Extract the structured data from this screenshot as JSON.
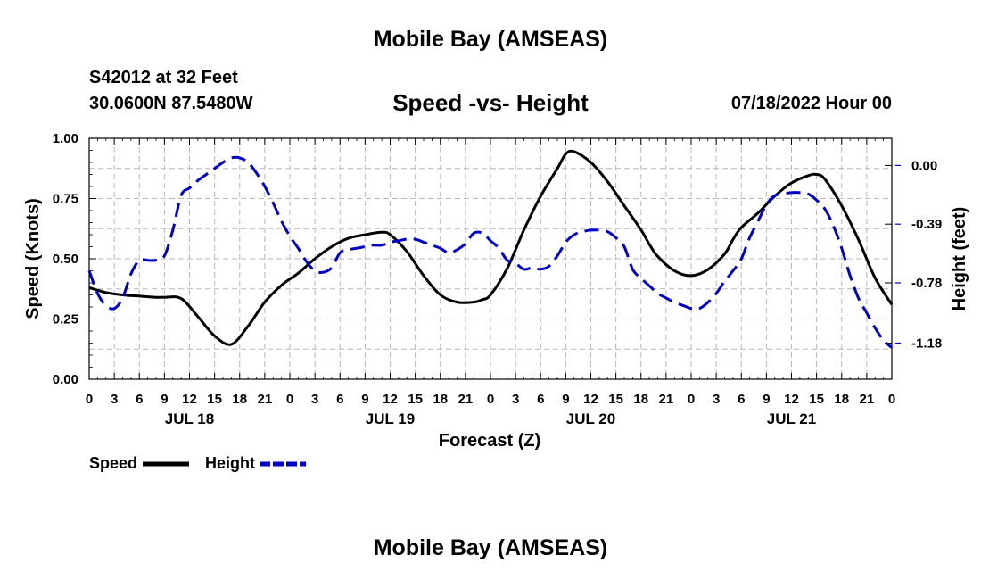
{
  "page": {
    "title_top": "Mobile Bay (AMSEAS)",
    "station": "S42012 at 32 Feet",
    "coords": "30.0600N  87.5480W",
    "subtitle": "Speed -vs- Height",
    "date": "07/18/2022 Hour 00",
    "title_bottom": "Mobile Bay (AMSEAS)"
  },
  "chart_data": {
    "type": "line",
    "title": "Speed -vs- Height",
    "xlabel": "Forecast (Z)",
    "ylabel_left": "Speed (Knots)",
    "ylabel_right": "Height (feet)",
    "x_range_hours": [
      0,
      96
    ],
    "x_tick_labels": [
      "0",
      "3",
      "6",
      "9",
      "12",
      "15",
      "18",
      "21",
      "0",
      "3",
      "6",
      "9",
      "12",
      "15",
      "18",
      "21",
      "0",
      "3",
      "6",
      "9",
      "12",
      "15",
      "18",
      "21",
      "0",
      "3",
      "6",
      "9",
      "12",
      "15",
      "18",
      "21",
      "0"
    ],
    "day_labels": [
      "JUL 18",
      "JUL 19",
      "JUL 20",
      "JUL 21"
    ],
    "y_left": {
      "range": [
        0,
        1
      ],
      "ticks": [
        0,
        0.25,
        0.5,
        0.75,
        1.0
      ],
      "tick_labels": [
        "0.00",
        "0.25",
        "0.50",
        "0.75",
        "1.00"
      ]
    },
    "y_right": {
      "range": [
        -1.42,
        0.18
      ],
      "ticks": [
        0,
        -0.39,
        -0.78,
        -1.18
      ],
      "tick_labels": [
        "0.00",
        "-0.39",
        "-0.78",
        "-1.18"
      ]
    },
    "series": [
      {
        "name": "Speed",
        "axis": "left",
        "color": "#000000",
        "dash": "solid",
        "x": [
          0,
          2,
          4,
          6,
          8,
          9,
          11,
          13,
          15,
          17,
          19,
          21,
          23,
          25,
          27,
          29,
          31,
          33,
          35,
          36,
          38,
          40,
          42,
          44,
          46,
          47,
          48,
          50,
          52,
          54,
          56,
          57,
          58,
          60,
          62,
          64,
          66,
          67,
          68,
          70,
          72,
          74,
          76,
          77,
          78,
          80,
          82,
          84,
          86,
          87,
          88,
          90,
          92,
          94,
          96
        ],
        "values": [
          0.38,
          0.36,
          0.35,
          0.345,
          0.34,
          0.34,
          0.335,
          0.26,
          0.18,
          0.145,
          0.22,
          0.32,
          0.39,
          0.44,
          0.5,
          0.55,
          0.585,
          0.6,
          0.61,
          0.6,
          0.53,
          0.43,
          0.35,
          0.32,
          0.32,
          0.33,
          0.35,
          0.46,
          0.62,
          0.76,
          0.875,
          0.935,
          0.945,
          0.9,
          0.82,
          0.72,
          0.62,
          0.56,
          0.51,
          0.45,
          0.43,
          0.455,
          0.52,
          0.58,
          0.63,
          0.69,
          0.76,
          0.815,
          0.845,
          0.85,
          0.83,
          0.72,
          0.58,
          0.42,
          0.31
        ]
      },
      {
        "name": "Height",
        "axis": "right",
        "color": "#0000cc",
        "dash": "dashed",
        "x": [
          0,
          1,
          2,
          3,
          4,
          5,
          6,
          7,
          8,
          9,
          10,
          11,
          12,
          13,
          14,
          15,
          16,
          17,
          18,
          19,
          20,
          21,
          22,
          23,
          24,
          25,
          26,
          27,
          28,
          29,
          30,
          31,
          32,
          33,
          34,
          35,
          36,
          37,
          38,
          39,
          40,
          41,
          42,
          43,
          44,
          45,
          46,
          47,
          48,
          49,
          50,
          51,
          52,
          53,
          54,
          55,
          56,
          57,
          58,
          59,
          60,
          61,
          62,
          63,
          64,
          65,
          66,
          67,
          68,
          69,
          70,
          71,
          72,
          73,
          74,
          75,
          76,
          77,
          78,
          79,
          80,
          81,
          82,
          83,
          84,
          85,
          86,
          87,
          88,
          89,
          90,
          91,
          92,
          93,
          94,
          95,
          96
        ],
        "values": [
          -0.7,
          -0.85,
          -0.93,
          -0.95,
          -0.88,
          -0.72,
          -0.63,
          -0.63,
          -0.63,
          -0.6,
          -0.43,
          -0.2,
          -0.15,
          -0.1,
          -0.06,
          -0.02,
          0.02,
          0.05,
          0.05,
          0.02,
          -0.05,
          -0.14,
          -0.25,
          -0.37,
          -0.47,
          -0.55,
          -0.64,
          -0.7,
          -0.71,
          -0.68,
          -0.58,
          -0.56,
          -0.55,
          -0.54,
          -0.53,
          -0.53,
          -0.51,
          -0.5,
          -0.49,
          -0.49,
          -0.51,
          -0.53,
          -0.55,
          -0.58,
          -0.56,
          -0.52,
          -0.45,
          -0.45,
          -0.5,
          -0.55,
          -0.63,
          -0.65,
          -0.69,
          -0.68,
          -0.69,
          -0.67,
          -0.6,
          -0.51,
          -0.46,
          -0.44,
          -0.43,
          -0.43,
          -0.44,
          -0.48,
          -0.54,
          -0.69,
          -0.75,
          -0.8,
          -0.85,
          -0.88,
          -0.91,
          -0.93,
          -0.95,
          -0.95,
          -0.91,
          -0.85,
          -0.77,
          -0.7,
          -0.62,
          -0.48,
          -0.37,
          -0.26,
          -0.2,
          -0.19,
          -0.18,
          -0.18,
          -0.19,
          -0.23,
          -0.29,
          -0.4,
          -0.55,
          -0.73,
          -0.88,
          -0.98,
          -1.08,
          -1.16,
          -1.21
        ]
      }
    ],
    "legend": [
      {
        "label": "Speed",
        "color": "#000000",
        "dash": "solid"
      },
      {
        "label": "Height",
        "color": "#0000cc",
        "dash": "dashed"
      }
    ],
    "grid": true,
    "legend_position": "bottom-left"
  }
}
